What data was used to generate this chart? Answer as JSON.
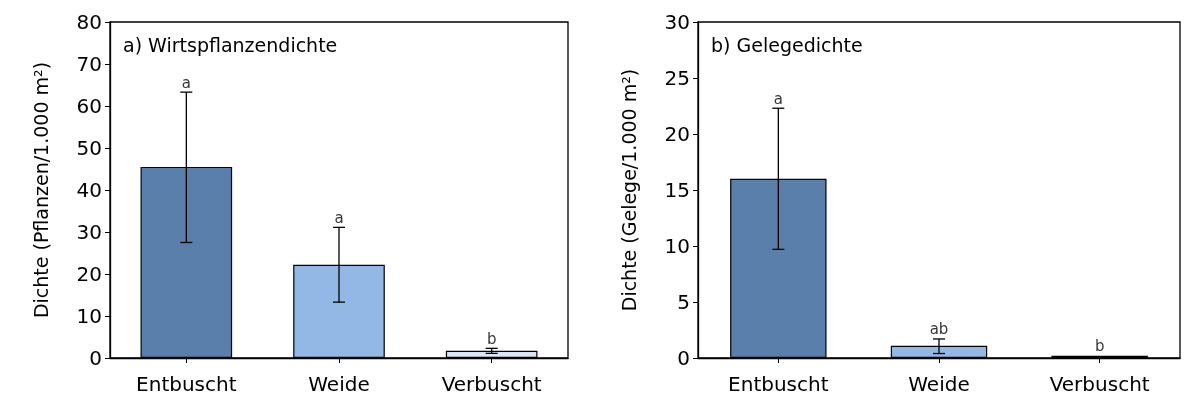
{
  "chart_data": [
    {
      "type": "bar",
      "title": "a) Wirtspflanzendichte",
      "ylabel": "Dichte (Pflanzen/1.000 m²)",
      "categories": [
        "Entbuscht",
        "Weide",
        "Verbuscht"
      ],
      "values": [
        45.5,
        22.2,
        1.7
      ],
      "colors": [
        "#5b7fab",
        "#94b8e6",
        "#dbe6f4"
      ],
      "errors": [
        [
          27.5,
          63.3
        ],
        [
          13.3,
          31.1
        ],
        [
          1.1,
          2.3
        ]
      ],
      "ylim": [
        0,
        80
      ],
      "yticks": [
        0,
        10,
        20,
        30,
        40,
        50,
        60,
        70,
        80
      ],
      "grid": false,
      "annotations": [
        {
          "text": "a",
          "x": "Entbuscht",
          "y": 63.3
        },
        {
          "text": "a",
          "x": "Weide",
          "y": 31.1
        },
        {
          "text": "b",
          "x": "Verbuscht",
          "y": 2.3
        }
      ]
    },
    {
      "type": "bar",
      "title": "b) Gelegedichte",
      "ylabel": "Dichte (Gelege/1.000 m²)",
      "categories": [
        "Entbuscht",
        "Weide",
        "Verbuscht"
      ],
      "values": [
        16,
        1.1,
        0.2
      ],
      "colors": [
        "#5b7fab",
        "#94b8e6",
        "#dbe6f4"
      ],
      "errors": [
        [
          9.7,
          22.3
        ],
        [
          0.4,
          1.7
        ],
        null
      ],
      "ylim": [
        0,
        30
      ],
      "yticks": [
        0,
        5,
        10,
        15,
        20,
        25,
        30
      ],
      "grid": false,
      "annotations": [
        {
          "text": "a",
          "x": "Entbuscht",
          "y": 22.3
        },
        {
          "text": "ab",
          "x": "Weide",
          "y": 1.7
        },
        {
          "text": "b",
          "x": "Verbuscht",
          "y": 0.2
        }
      ]
    }
  ]
}
